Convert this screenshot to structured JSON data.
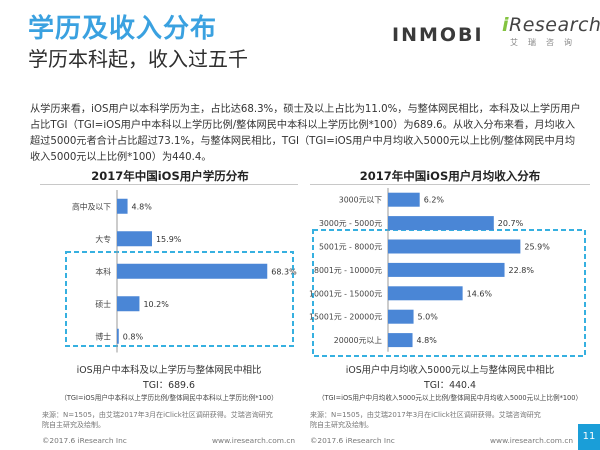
{
  "header": {
    "title": "学历及收入分布",
    "subtitle": "学历本科起，收入过五千",
    "logo_inmobi": "INMOBI",
    "logo_ir_i": "i",
    "logo_ir_rest": "Research",
    "logo_ir_sub": "艾瑞咨询"
  },
  "paragraph": "从学历来看，iOS用户以本科学历为主，占比达68.3%，硕士及以上占比为11.0%，与整体网民相比，本科及以上学历用户占比TGI（TGI=iOS用户中本科以上学历比例/整体网民中本科以上学历比例*100）为689.6。从收入分布来看，月均收入超过5000元者合计占比超过73.1%，与整体网民相比，TGI（TGI=iOS用户中月均收入5000元以上比例/整体网民中月均收入5000元以上比例*100）为440.4。",
  "left": {
    "caption": "iOS用户中本科及以上学历与整体网民中相比",
    "tgi": "TGI：689.6",
    "formula": "（TGI=iOS用户中本科以上学历比例/整体网民中本科以上学历比例*100）",
    "source": "来源：N=1505，由艾瑞2017年3月在iClick社区调研获得。艾瑞咨询研究院自主研究及绘制。"
  },
  "right": {
    "caption": "iOS用户中月均收入5000元以上与整体网民中相比",
    "tgi": "TGI：440.4",
    "formula": "（TGI=iOS用户中月均收入5000元以上比例/整体网民中月均收入5000元以上比例*100）",
    "source": "来源：N=1505，由艾瑞2017年3月在iClick社区调研获得。艾瑞咨询研究院自主研究及绘制。"
  },
  "footer": {
    "left_copyright": "©2017.6 iResearch Inc",
    "left_url": "www.iresearch.com.cn",
    "right_copyright": "©2017.6 iResearch Inc",
    "right_url": "www.iresearch.com.cn",
    "page": "11"
  },
  "colors": {
    "accent": "#3aa1e0",
    "bar": "#4a86d6",
    "highlight_box": "#36b0e0",
    "page_box": "#1a9ed8",
    "brand_green": "#83c340"
  },
  "chart_data": [
    {
      "type": "bar",
      "orientation": "horizontal",
      "title": "2017年中国iOS用户学历分布",
      "categories": [
        "高中及以下",
        "大专",
        "本科",
        "硕士",
        "博士"
      ],
      "values": [
        4.8,
        15.9,
        68.3,
        10.2,
        0.8
      ],
      "value_labels": [
        "4.8%",
        "15.9%",
        "68.3%",
        "10.2%",
        "0.8%"
      ],
      "unit": "%",
      "xlim": [
        0,
        70
      ],
      "grid": false,
      "highlighted_categories": [
        "本科",
        "硕士",
        "博士"
      ]
    },
    {
      "type": "bar",
      "orientation": "horizontal",
      "title": "2017年中国iOS用户月均收入分布",
      "categories": [
        "3000元以下",
        "3000元 - 5000元",
        "5001元 - 8000元",
        "8001元 - 10000元",
        "10001元 - 15000元",
        "15001元 - 20000元",
        "20000元以上"
      ],
      "values": [
        6.2,
        20.7,
        25.9,
        22.8,
        14.6,
        5.0,
        4.8
      ],
      "value_labels": [
        "6.2%",
        "20.7%",
        "25.9%",
        "22.8%",
        "14.6%",
        "5.0%",
        "4.8%"
      ],
      "unit": "%",
      "xlim": [
        0,
        27
      ],
      "grid": false,
      "highlighted_categories": [
        "5001元 - 8000元",
        "8001元 - 10000元",
        "10001元 - 15000元",
        "15001元 - 20000元",
        "20000元以上"
      ]
    }
  ]
}
